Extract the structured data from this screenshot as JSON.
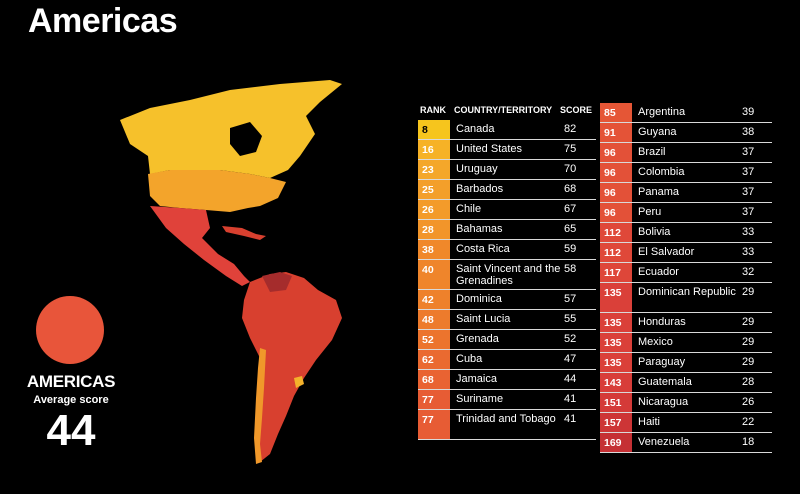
{
  "title": "Americas",
  "summary": {
    "region_label": "AMERICAS",
    "average_label": "Average score",
    "average_value": "44",
    "circle_color": "#e8553a"
  },
  "map": {
    "regions": [
      {
        "name": "Canada",
        "color": "#f6c12b"
      },
      {
        "name": "United States",
        "color": "#f3a42b"
      },
      {
        "name": "Mexico / Central America",
        "color": "#e0423a"
      },
      {
        "name": "South America",
        "color": "#d8402f"
      },
      {
        "name": "Chile",
        "color": "#f0982a"
      },
      {
        "name": "Uruguay",
        "color": "#f4b12b"
      },
      {
        "name": "Venezuela",
        "color": "#a52c2c"
      }
    ]
  },
  "table": {
    "headers": {
      "rank": "RANK",
      "country": "COUNTRY/TERRITORY",
      "score": "SCORE"
    },
    "left": [
      {
        "rank": "8",
        "country": "Canada",
        "score": "82",
        "color": "#f6c51d",
        "rank_color": "#000"
      },
      {
        "rank": "16",
        "country": "United States",
        "score": "75",
        "color": "#f6b226"
      },
      {
        "rank": "23",
        "country": "Uruguay",
        "score": "70",
        "color": "#f4a72a"
      },
      {
        "rank": "25",
        "country": "Barbados",
        "score": "68",
        "color": "#f39f2a"
      },
      {
        "rank": "26",
        "country": "Chile",
        "score": "67",
        "color": "#f39b2a"
      },
      {
        "rank": "28",
        "country": "Bahamas",
        "score": "65",
        "color": "#f2952a"
      },
      {
        "rank": "38",
        "country": "Costa Rica",
        "score": "59",
        "color": "#f0882a"
      },
      {
        "rank": "40",
        "country": "Saint Vincent and the Grenadines",
        "score": "58",
        "color": "#ef852b",
        "tall": true
      },
      {
        "rank": "42",
        "country": "Dominica",
        "score": "57",
        "color": "#ee812b"
      },
      {
        "rank": "48",
        "country": "Saint Lucia",
        "score": "55",
        "color": "#ed7b2c"
      },
      {
        "rank": "52",
        "country": "Grenada",
        "score": "52",
        "color": "#ec742d"
      },
      {
        "rank": "62",
        "country": "Cuba",
        "score": "47",
        "color": "#ea6a30"
      },
      {
        "rank": "68",
        "country": "Jamaica",
        "score": "44",
        "color": "#e96332"
      },
      {
        "rank": "77",
        "country": "Suriname",
        "score": "41",
        "color": "#e75c34"
      },
      {
        "rank": "77",
        "country": "Trinidad and Tobago",
        "score": "41",
        "color": "#e75c34",
        "tall": true
      }
    ],
    "right": [
      {
        "rank": "85",
        "country": "Argentina",
        "score": "39",
        "color": "#e55636"
      },
      {
        "rank": "91",
        "country": "Guyana",
        "score": "38",
        "color": "#e45337"
      },
      {
        "rank": "96",
        "country": "Brazil",
        "score": "37",
        "color": "#e35138"
      },
      {
        "rank": "96",
        "country": "Colombia",
        "score": "37",
        "color": "#e35138"
      },
      {
        "rank": "96",
        "country": "Panama",
        "score": "37",
        "color": "#e35138"
      },
      {
        "rank": "96",
        "country": "Peru",
        "score": "37",
        "color": "#e35138"
      },
      {
        "rank": "112",
        "country": "Bolivia",
        "score": "33",
        "color": "#df4839"
      },
      {
        "rank": "112",
        "country": "El Salvador",
        "score": "33",
        "color": "#df4839"
      },
      {
        "rank": "117",
        "country": "Ecuador",
        "score": "32",
        "color": "#de4639"
      },
      {
        "rank": "135",
        "country": "Dominican Republic",
        "score": "29",
        "color": "#da4039",
        "tall": true
      },
      {
        "rank": "135",
        "country": "Honduras",
        "score": "29",
        "color": "#da4039"
      },
      {
        "rank": "135",
        "country": "Mexico",
        "score": "29",
        "color": "#da4039"
      },
      {
        "rank": "135",
        "country": "Paraguay",
        "score": "29",
        "color": "#da4039"
      },
      {
        "rank": "143",
        "country": "Guatemala",
        "score": "28",
        "color": "#d83d39"
      },
      {
        "rank": "151",
        "country": "Nicaragua",
        "score": "26",
        "color": "#d43a38"
      },
      {
        "rank": "157",
        "country": "Haiti",
        "score": "22",
        "color": "#cd3536"
      },
      {
        "rank": "169",
        "country": "Venezuela",
        "score": "18",
        "color": "#c53034"
      }
    ]
  }
}
